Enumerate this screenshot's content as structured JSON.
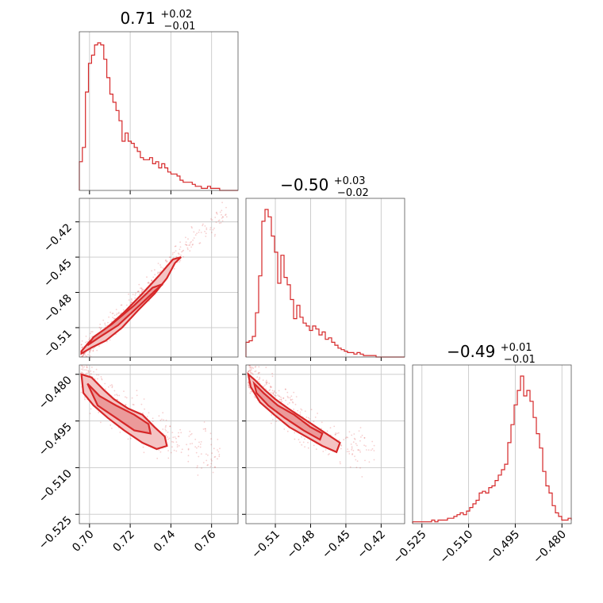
{
  "colors": {
    "series": "#d62728",
    "fill_light": "#f4c3c3",
    "fill_mid": "#eb9a9a"
  },
  "chart_data": {
    "type": "corner",
    "parameters": [
      {
        "title_value": "0.71",
        "err_plus": "+0.02",
        "err_minus": "−0.01",
        "range": [
          0.695,
          0.773
        ]
      },
      {
        "title_value": "−0.50",
        "err_plus": "+0.03",
        "err_minus": "−0.02",
        "range": [
          -0.535,
          -0.4
        ]
      },
      {
        "title_value": "−0.49",
        "err_plus": "+0.01",
        "err_minus": "−0.01",
        "range": [
          -0.528,
          -0.477
        ]
      }
    ],
    "ticks": {
      "p0": {
        "values": [
          0.7,
          0.72,
          0.74,
          0.76
        ],
        "labels": [
          "0.70",
          "0.72",
          "0.74",
          "0.76"
        ]
      },
      "p1": {
        "values": [
          -0.51,
          -0.48,
          -0.45,
          -0.42
        ],
        "labels": [
          "−0.51",
          "−0.48",
          "−0.45",
          "−0.42"
        ]
      },
      "p2": {
        "values": [
          -0.525,
          -0.51,
          -0.495,
          -0.48
        ],
        "labels": [
          "−0.525",
          "−0.510",
          "−0.495",
          "−0.480"
        ]
      }
    },
    "histograms": [
      {
        "x0": 0.695,
        "dx": 0.0015,
        "counts": [
          0.14,
          0.21,
          0.48,
          0.62,
          0.66,
          0.71,
          0.72,
          0.71,
          0.64,
          0.55,
          0.47,
          0.43,
          0.39,
          0.34,
          0.24,
          0.28,
          0.24,
          0.23,
          0.21,
          0.19,
          0.16,
          0.15,
          0.15,
          0.16,
          0.13,
          0.14,
          0.11,
          0.13,
          0.11,
          0.09,
          0.08,
          0.08,
          0.07,
          0.05,
          0.04,
          0.04,
          0.04,
          0.03,
          0.02,
          0.02,
          0.01,
          0.01,
          0.02,
          0.01,
          0.01,
          0.01,
          0.0,
          0.0,
          0.0,
          0.0,
          0.0,
          0.0
        ]
      },
      {
        "x0": -0.535,
        "dx": 0.0027,
        "counts": [
          0.1,
          0.11,
          0.14,
          0.3,
          0.55,
          0.92,
          1.0,
          0.95,
          0.82,
          0.71,
          0.5,
          0.69,
          0.54,
          0.49,
          0.39,
          0.26,
          0.35,
          0.27,
          0.23,
          0.21,
          0.18,
          0.21,
          0.19,
          0.15,
          0.17,
          0.12,
          0.13,
          0.1,
          0.08,
          0.06,
          0.05,
          0.04,
          0.03,
          0.03,
          0.02,
          0.03,
          0.02,
          0.01,
          0.01,
          0.01,
          0.01,
          0.0,
          0.0,
          0.0,
          0.0,
          0.0,
          0.0,
          0.0,
          0.0,
          0.0
        ]
      },
      {
        "x0": -0.528,
        "dx": 0.00102,
        "counts": [
          0.01,
          0.01,
          0.01,
          0.01,
          0.01,
          0.01,
          0.02,
          0.01,
          0.02,
          0.02,
          0.02,
          0.03,
          0.03,
          0.04,
          0.05,
          0.06,
          0.05,
          0.07,
          0.09,
          0.11,
          0.13,
          0.17,
          0.18,
          0.17,
          0.2,
          0.21,
          0.24,
          0.27,
          0.3,
          0.33,
          0.45,
          0.55,
          0.66,
          0.74,
          0.82,
          0.71,
          0.74,
          0.68,
          0.59,
          0.5,
          0.42,
          0.29,
          0.21,
          0.17,
          0.1,
          0.06,
          0.04,
          0.02,
          0.02,
          0.03,
          0.02
        ]
      }
    ],
    "scatter_pairs": [
      {
        "row": 1,
        "col": 0,
        "ridge": [
          [
            0.696,
            -0.534
          ],
          [
            0.701,
            -0.525
          ],
          [
            0.706,
            -0.516
          ],
          [
            0.712,
            -0.506
          ],
          [
            0.718,
            -0.495
          ],
          [
            0.724,
            -0.485
          ],
          [
            0.73,
            -0.474
          ],
          [
            0.736,
            -0.463
          ],
          [
            0.742,
            -0.451
          ],
          [
            0.75,
            -0.437
          ],
          [
            0.76,
            -0.423
          ],
          [
            0.768,
            -0.41
          ]
        ],
        "spread_y": 0.006
      },
      {
        "row": 2,
        "col": 0,
        "ridge": [
          [
            0.696,
            -0.479
          ],
          [
            0.702,
            -0.485
          ],
          [
            0.708,
            -0.489
          ],
          [
            0.714,
            -0.491
          ],
          [
            0.72,
            -0.494
          ],
          [
            0.726,
            -0.496
          ],
          [
            0.732,
            -0.499
          ],
          [
            0.738,
            -0.5
          ],
          [
            0.746,
            -0.502
          ],
          [
            0.756,
            -0.504
          ],
          [
            0.765,
            -0.505
          ]
        ],
        "spread_y": 0.0045
      },
      {
        "row": 2,
        "col": 1,
        "ridge": [
          [
            -0.533,
            -0.48
          ],
          [
            -0.523,
            -0.484
          ],
          [
            -0.513,
            -0.488
          ],
          [
            -0.503,
            -0.491
          ],
          [
            -0.493,
            -0.494
          ],
          [
            -0.483,
            -0.497
          ],
          [
            -0.473,
            -0.499
          ],
          [
            -0.463,
            -0.501
          ],
          [
            -0.45,
            -0.503
          ],
          [
            -0.438,
            -0.504
          ],
          [
            -0.425,
            -0.505
          ]
        ],
        "spread_y": 0.004
      }
    ],
    "contours": [
      {
        "row": 1,
        "col": 0,
        "outer": [
          [
            0.696,
            -0.532
          ],
          [
            0.701,
            -0.527
          ],
          [
            0.708,
            -0.521
          ],
          [
            0.716,
            -0.51
          ],
          [
            0.724,
            -0.495
          ],
          [
            0.732,
            -0.481
          ],
          [
            0.738,
            -0.468
          ],
          [
            0.742,
            -0.455
          ],
          [
            0.745,
            -0.45
          ],
          [
            0.741,
            -0.452
          ],
          [
            0.734,
            -0.466
          ],
          [
            0.726,
            -0.481
          ],
          [
            0.717,
            -0.497
          ],
          [
            0.708,
            -0.511
          ],
          [
            0.7,
            -0.522
          ],
          [
            0.696,
            -0.53
          ]
        ],
        "inner": [
          [
            0.699,
            -0.525
          ],
          [
            0.705,
            -0.518
          ],
          [
            0.714,
            -0.508
          ],
          [
            0.724,
            -0.492
          ],
          [
            0.732,
            -0.479
          ],
          [
            0.736,
            -0.473
          ],
          [
            0.731,
            -0.476
          ],
          [
            0.722,
            -0.491
          ],
          [
            0.711,
            -0.507
          ],
          [
            0.702,
            -0.518
          ]
        ]
      },
      {
        "row": 2,
        "col": 0,
        "outer": [
          [
            0.696,
            -0.48
          ],
          [
            0.701,
            -0.481
          ],
          [
            0.707,
            -0.485
          ],
          [
            0.712,
            -0.488
          ],
          [
            0.719,
            -0.491
          ],
          [
            0.726,
            -0.493
          ],
          [
            0.732,
            -0.497
          ],
          [
            0.737,
            -0.5
          ],
          [
            0.738,
            -0.503
          ],
          [
            0.733,
            -0.504
          ],
          [
            0.726,
            -0.502
          ],
          [
            0.717,
            -0.498
          ],
          [
            0.709,
            -0.494
          ],
          [
            0.702,
            -0.49
          ],
          [
            0.697,
            -0.486
          ]
        ],
        "inner": [
          [
            0.699,
            -0.483
          ],
          [
            0.705,
            -0.487
          ],
          [
            0.713,
            -0.49
          ],
          [
            0.722,
            -0.493
          ],
          [
            0.729,
            -0.496
          ],
          [
            0.73,
            -0.499
          ],
          [
            0.722,
            -0.498
          ],
          [
            0.713,
            -0.494
          ],
          [
            0.704,
            -0.49
          ]
        ]
      },
      {
        "row": 2,
        "col": 1,
        "outer": [
          [
            -0.533,
            -0.48
          ],
          [
            -0.527,
            -0.482
          ],
          [
            -0.519,
            -0.485
          ],
          [
            -0.51,
            -0.488
          ],
          [
            -0.499,
            -0.491
          ],
          [
            -0.487,
            -0.494
          ],
          [
            -0.475,
            -0.497
          ],
          [
            -0.463,
            -0.5
          ],
          [
            -0.455,
            -0.502
          ],
          [
            -0.458,
            -0.505
          ],
          [
            -0.47,
            -0.503
          ],
          [
            -0.484,
            -0.5
          ],
          [
            -0.498,
            -0.497
          ],
          [
            -0.511,
            -0.493
          ],
          [
            -0.523,
            -0.489
          ],
          [
            -0.531,
            -0.484
          ]
        ],
        "inner": [
          [
            -0.528,
            -0.483
          ],
          [
            -0.52,
            -0.486
          ],
          [
            -0.508,
            -0.49
          ],
          [
            -0.494,
            -0.493
          ],
          [
            -0.48,
            -0.497
          ],
          [
            -0.47,
            -0.499
          ],
          [
            -0.472,
            -0.501
          ],
          [
            -0.486,
            -0.498
          ],
          [
            -0.502,
            -0.494
          ],
          [
            -0.516,
            -0.49
          ],
          [
            -0.526,
            -0.486
          ]
        ]
      }
    ]
  }
}
